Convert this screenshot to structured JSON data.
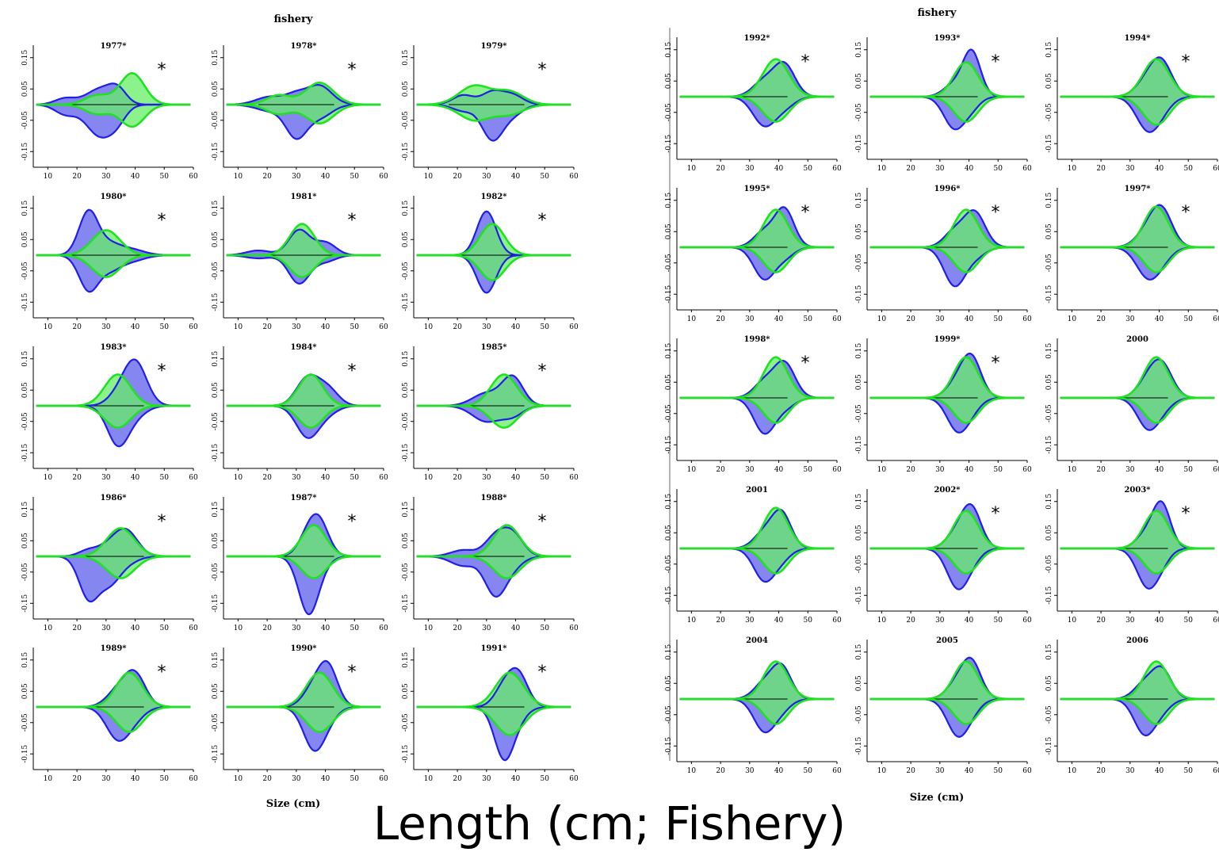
{
  "caption": "Length (cm; Fishery)",
  "colors": {
    "observed": "#1f1fe6",
    "observed_fill": "#8080f0",
    "expected": "#22e022",
    "expected_fill": "#66ee66",
    "overlap_fill": "#3cb371",
    "zero_line": "#000000"
  },
  "chart_data": [
    {
      "type": "area",
      "title": "fishery",
      "xlabel": "Size (cm)",
      "ylabel": "",
      "xlim": [
        5,
        60
      ],
      "ylim": [
        -0.2,
        0.2
      ],
      "x_ticks": [
        10,
        20,
        30,
        40,
        50,
        60
      ],
      "y_ticks": [
        -0.15,
        -0.05,
        0.05,
        0.15
      ],
      "grid": false,
      "legend": "none",
      "annotation": "*",
      "panels": [
        {
          "year": "1977*",
          "asterisk": true,
          "obs": [
            [
              16,
              0.02,
              -0.03,
              0.6
            ],
            [
              28,
              0.05,
              -0.1,
              0.8
            ],
            [
              34,
              0.04,
              -0.03,
              0.5
            ]
          ],
          "exp": [
            [
              27,
              0.03,
              -0.03,
              0.7
            ],
            [
              39,
              0.1,
              -0.07,
              0.7
            ]
          ]
        },
        {
          "year": "1978*",
          "asterisk": true,
          "obs": [
            [
              21,
              0.025,
              -0.02,
              0.8
            ],
            [
              30,
              0.03,
              -0.1,
              0.6
            ],
            [
              38,
              0.06,
              -0.04,
              0.7
            ]
          ],
          "exp": [
            [
              24,
              0.03,
              -0.03,
              0.7
            ],
            [
              38,
              0.07,
              -0.06,
              0.8
            ]
          ]
        },
        {
          "year": "1979*",
          "asterisk": true,
          "obs": [
            [
              22,
              0.03,
              -0.02,
              0.6
            ],
            [
              32,
              0.04,
              -0.11,
              0.6
            ],
            [
              39,
              0.03,
              -0.03,
              0.6
            ]
          ],
          "exp": [
            [
              26,
              0.06,
              -0.05,
              0.9
            ],
            [
              38,
              0.04,
              -0.03,
              0.8
            ]
          ]
        },
        {
          "year": "1980*",
          "asterisk": true,
          "obs": [
            [
              24,
              0.14,
              -0.11,
              0.55
            ],
            [
              31,
              0.03,
              -0.04,
              0.6
            ],
            [
              38,
              0.02,
              -0.02,
              0.8
            ]
          ],
          "exp": [
            [
              30,
              0.08,
              -0.07,
              0.8
            ]
          ]
        },
        {
          "year": "1981*",
          "asterisk": true,
          "obs": [
            [
              17,
              0.015,
              -0.01,
              0.7
            ],
            [
              31,
              0.08,
              -0.09,
              0.6
            ],
            [
              40,
              0.04,
              -0.02,
              0.6
            ]
          ],
          "exp": [
            [
              32,
              0.1,
              -0.07,
              0.7
            ]
          ]
        },
        {
          "year": "1982*",
          "asterisk": true,
          "obs": [
            [
              30,
              0.14,
              -0.12,
              0.55
            ]
          ],
          "exp": [
            [
              32,
              0.1,
              -0.08,
              0.7
            ]
          ]
        },
        {
          "year": "1983*",
          "asterisk": true,
          "obs": [
            [
              34,
              0.03,
              -0.12,
              0.6
            ],
            [
              40,
              0.14,
              -0.03,
              0.65
            ]
          ],
          "exp": [
            [
              34,
              0.1,
              -0.07,
              0.75
            ]
          ]
        },
        {
          "year": "1984*",
          "asterisk": true,
          "obs": [
            [
              34,
              0.09,
              -0.1,
              0.65
            ],
            [
              41,
              0.05,
              -0.02,
              0.6
            ]
          ],
          "exp": [
            [
              35,
              0.1,
              -0.07,
              0.7
            ]
          ]
        },
        {
          "year": "1985*",
          "asterisk": true,
          "obs": [
            [
              30,
              0.04,
              -0.05,
              0.8
            ],
            [
              39,
              0.09,
              -0.03,
              0.6
            ]
          ],
          "exp": [
            [
              36,
              0.1,
              -0.07,
              0.75
            ]
          ]
        },
        {
          "year": "1986*",
          "asterisk": true,
          "obs": [
            [
              24,
              0.02,
              -0.13,
              0.55
            ],
            [
              31,
              0.03,
              -0.08,
              0.6
            ],
            [
              37,
              0.08,
              -0.02,
              0.65
            ]
          ],
          "exp": [
            [
              35,
              0.09,
              -0.07,
              0.8
            ]
          ]
        },
        {
          "year": "1987*",
          "asterisk": true,
          "obs": [
            [
              34,
              0.06,
              -0.17,
              0.55
            ],
            [
              38,
              0.1,
              -0.03,
              0.55
            ]
          ],
          "exp": [
            [
              36,
              0.1,
              -0.07,
              0.7
            ]
          ]
        },
        {
          "year": "1988*",
          "asterisk": true,
          "obs": [
            [
              22,
              0.02,
              -0.03,
              0.7
            ],
            [
              33,
              0.06,
              -0.12,
              0.6
            ],
            [
              39,
              0.07,
              -0.03,
              0.6
            ]
          ],
          "exp": [
            [
              37,
              0.1,
              -0.07,
              0.75
            ]
          ]
        },
        {
          "year": "1989*",
          "asterisk": true,
          "obs": [
            [
              34,
              0.05,
              -0.1,
              0.65
            ],
            [
              40,
              0.1,
              -0.03,
              0.6
            ]
          ],
          "exp": [
            [
              38,
              0.11,
              -0.08,
              0.75
            ]
          ]
        },
        {
          "year": "1990*",
          "asterisk": true,
          "obs": [
            [
              36,
              0.06,
              -0.13,
              0.6
            ],
            [
              41,
              0.12,
              -0.03,
              0.55
            ]
          ],
          "exp": [
            [
              38,
              0.11,
              -0.08,
              0.75
            ]
          ]
        },
        {
          "year": "1991*",
          "asterisk": true,
          "obs": [
            [
              36,
              0.06,
              -0.16,
              0.55
            ],
            [
              41,
              0.1,
              -0.03,
              0.55
            ]
          ],
          "exp": [
            [
              38,
              0.11,
              -0.09,
              0.8
            ]
          ]
        },
        {
          "year": "1992*",
          "asterisk": true,
          "obs": [
            [
              35,
              0.05,
              -0.09,
              0.65
            ],
            [
              42,
              0.1,
              -0.03,
              0.6
            ]
          ],
          "exp": [
            [
              39,
              0.12,
              -0.08,
              0.75
            ]
          ]
        },
        {
          "year": "1993*",
          "asterisk": true,
          "obs": [
            [
              35,
              0.04,
              -0.1,
              0.6
            ],
            [
              41,
              0.14,
              -0.03,
              0.5
            ]
          ],
          "exp": [
            [
              39,
              0.11,
              -0.08,
              0.7
            ]
          ]
        },
        {
          "year": "1994*",
          "asterisk": true,
          "obs": [
            [
              36,
              0.05,
              -0.1,
              0.65
            ],
            [
              41,
              0.1,
              -0.03,
              0.6
            ]
          ],
          "exp": [
            [
              39,
              0.12,
              -0.09,
              0.75
            ]
          ]
        },
        {
          "year": "1995*",
          "asterisk": true,
          "obs": [
            [
              35,
              0.05,
              -0.1,
              0.6
            ],
            [
              42,
              0.12,
              -0.03,
              0.55
            ]
          ],
          "exp": [
            [
              39,
              0.12,
              -0.08,
              0.7
            ]
          ]
        },
        {
          "year": "1996*",
          "asterisk": true,
          "obs": [
            [
              35,
              0.05,
              -0.12,
              0.6
            ],
            [
              42,
              0.11,
              -0.03,
              0.6
            ]
          ],
          "exp": [
            [
              39,
              0.12,
              -0.08,
              0.7
            ]
          ]
        },
        {
          "year": "1997*",
          "asterisk": true,
          "obs": [
            [
              36,
              0.05,
              -0.09,
              0.65
            ],
            [
              41,
              0.11,
              -0.03,
              0.6
            ]
          ],
          "exp": [
            [
              39,
              0.13,
              -0.08,
              0.7
            ]
          ]
        },
        {
          "year": "1998*",
          "asterisk": true,
          "obs": [
            [
              35,
              0.05,
              -0.11,
              0.6
            ],
            [
              42,
              0.11,
              -0.03,
              0.6
            ]
          ],
          "exp": [
            [
              39,
              0.13,
              -0.08,
              0.7
            ]
          ]
        },
        {
          "year": "1999*",
          "asterisk": true,
          "obs": [
            [
              36,
              0.05,
              -0.1,
              0.6
            ],
            [
              41,
              0.12,
              -0.03,
              0.55
            ]
          ],
          "exp": [
            [
              39,
              0.13,
              -0.08,
              0.7
            ]
          ]
        },
        {
          "year": "2000",
          "asterisk": false,
          "obs": [
            [
              36,
              0.05,
              -0.09,
              0.6
            ],
            [
              41,
              0.1,
              -0.03,
              0.6
            ]
          ],
          "exp": [
            [
              39,
              0.13,
              -0.08,
              0.7
            ]
          ]
        },
        {
          "year": "2001",
          "asterisk": false,
          "obs": [
            [
              35,
              0.05,
              -0.1,
              0.6
            ],
            [
              41,
              0.11,
              -0.03,
              0.55
            ]
          ],
          "exp": [
            [
              39,
              0.13,
              -0.08,
              0.7
            ]
          ]
        },
        {
          "year": "2002*",
          "asterisk": true,
          "obs": [
            [
              36,
              0.05,
              -0.12,
              0.6
            ],
            [
              41,
              0.12,
              -0.03,
              0.55
            ]
          ],
          "exp": [
            [
              39,
              0.12,
              -0.08,
              0.7
            ]
          ]
        },
        {
          "year": "2003*",
          "asterisk": true,
          "obs": [
            [
              36,
              0.05,
              -0.12,
              0.6
            ],
            [
              41,
              0.13,
              -0.03,
              0.5
            ]
          ],
          "exp": [
            [
              39,
              0.12,
              -0.08,
              0.7
            ]
          ]
        },
        {
          "year": "2004",
          "asterisk": false,
          "obs": [
            [
              35,
              0.05,
              -0.1,
              0.6
            ],
            [
              41,
              0.1,
              -0.03,
              0.55
            ]
          ],
          "exp": [
            [
              39,
              0.12,
              -0.08,
              0.7
            ]
          ]
        },
        {
          "year": "2005",
          "asterisk": false,
          "obs": [
            [
              36,
              0.05,
              -0.11,
              0.6
            ],
            [
              41,
              0.11,
              -0.03,
              0.55
            ]
          ],
          "exp": [
            [
              39,
              0.12,
              -0.08,
              0.7
            ]
          ]
        },
        {
          "year": "2006",
          "asterisk": false,
          "obs": [
            [
              35,
              0.05,
              -0.11,
              0.6
            ],
            [
              41,
              0.09,
              -0.03,
              0.55
            ]
          ],
          "exp": [
            [
              39,
              0.12,
              -0.08,
              0.7
            ]
          ]
        }
      ]
    }
  ]
}
